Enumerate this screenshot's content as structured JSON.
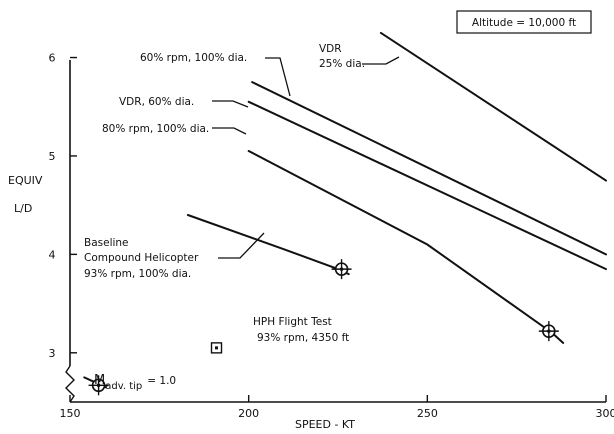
{
  "chart_data": {
    "type": "line",
    "xlabel": "SPEED - KT",
    "ylabel_line1": "EQUIV",
    "ylabel_line2": "L/D",
    "xlim": [
      150,
      300
    ],
    "ylim": [
      2.5,
      6.3
    ],
    "xticks": [
      150,
      200,
      250,
      300
    ],
    "yticks": [
      3,
      4,
      5,
      6
    ],
    "altitude_box": "Altitude = 10,000 ft",
    "series": [
      {
        "name": "VDR 25% dia.",
        "x": [
          237,
          300
        ],
        "y": [
          6.25,
          4.75
        ]
      },
      {
        "name": "60% rpm, 100% dia.",
        "x": [
          201,
          300
        ],
        "y": [
          5.75,
          4.0
        ]
      },
      {
        "name": "VDR, 60% dia.",
        "x": [
          200,
          300
        ],
        "y": [
          5.55,
          3.85
        ]
      },
      {
        "name": "80% rpm, 100% dia.",
        "x": [
          200,
          250,
          285,
          288
        ],
        "y": [
          5.05,
          4.1,
          3.2,
          3.1
        ]
      },
      {
        "name": "Baseline Compound Helicopter 93% rpm, 100% dia.",
        "x": [
          183,
          210,
          225,
          228
        ],
        "y": [
          4.4,
          4.05,
          3.85,
          3.8
        ]
      },
      {
        "name": "",
        "x": [
          154,
          160
        ],
        "y": [
          2.75,
          2.65
        ]
      }
    ],
    "design_points": [
      {
        "x": 226,
        "y": 3.85
      },
      {
        "x": 284,
        "y": 3.22
      },
      {
        "x": 158,
        "y": 2.67
      }
    ],
    "flight_test": {
      "x": 191,
      "y": 3.05
    },
    "annotations": {
      "vdr25_line1": "VDR",
      "vdr25_line2": "25% dia.",
      "rpm60": "60% rpm, 100% dia.",
      "vdr60": "VDR, 60% dia.",
      "rpm80": "80% rpm, 100% dia.",
      "baseline_line1": "Baseline",
      "baseline_line2": "Compound Helicopter",
      "baseline_line3": "93% rpm, 100% dia.",
      "flight_test_line1": "HPH Flight Test",
      "flight_test_line2": "93% rpm, 4350 ft",
      "madv_main": "M",
      "madv_sub": "adv. tip",
      "madv_rest": "= 1.0"
    }
  }
}
